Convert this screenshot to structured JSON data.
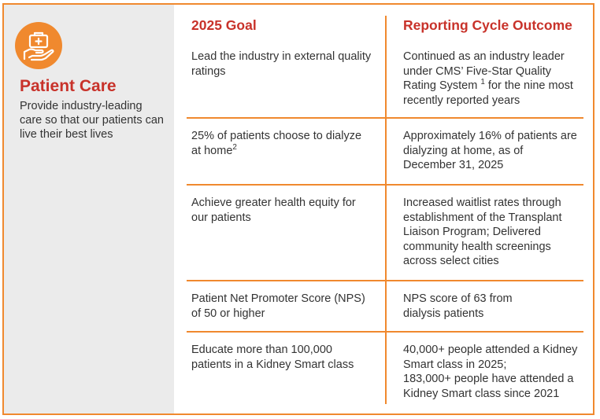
{
  "sidebar": {
    "icon": "hand-medical-kit-icon",
    "title": "Patient Care",
    "description": "Provide industry-leading care so that our patients can live their best lives"
  },
  "table": {
    "headers": {
      "goal": "2025 Goal",
      "outcome": "Reporting Cycle Outcome"
    },
    "rows": [
      {
        "goal": "Lead the industry in external quality ratings",
        "outcome_pre": "Continued as an industry leader under CMS’ Five-Star Quality Rating System ",
        "outcome_sup": "1",
        "outcome_post": " for the nine most recently reported years"
      },
      {
        "goal_pre": "25% of patients choose to dialyze at home",
        "goal_sup": "2",
        "outcome": "Approximately 16% of patients are dialyzing at home, as of December 31, 2025"
      },
      {
        "goal": "Achieve greater health equity for our patients",
        "outcome": "Increased waitlist rates through establishment of the Transplant Liaison Program; Delivered community health screenings across select cities"
      },
      {
        "goal": "Patient Net Promoter Score (NPS) of 50 or higher",
        "outcome_line1": "NPS score of 63 from",
        "outcome_line2": "dialysis patients"
      },
      {
        "goal": "Educate more than 100,000 patients in a Kidney Smart class",
        "outcome_line1": "40,000+ people attended a Kidney Smart class in 2025;",
        "outcome_line2": "183,000+ people have attended a Kidney Smart class since 2021"
      }
    ]
  },
  "colors": {
    "accent": "#f0892e",
    "heading": "#c8322a",
    "sidebar_bg": "#ebebeb",
    "text": "#333333"
  }
}
